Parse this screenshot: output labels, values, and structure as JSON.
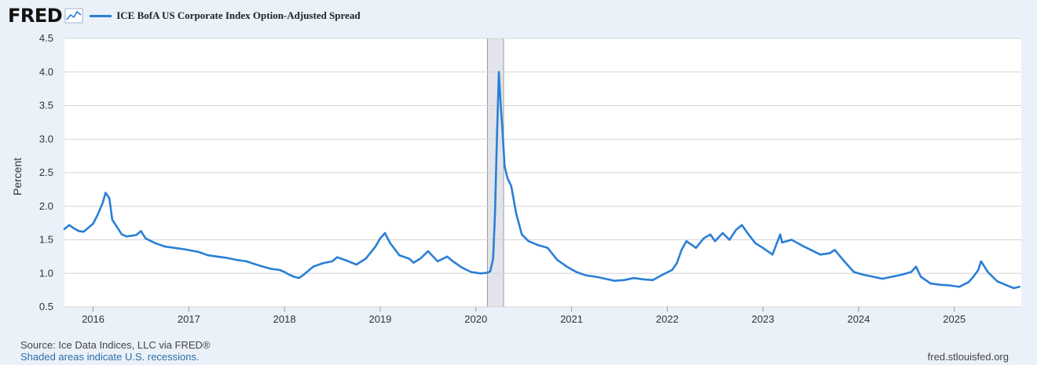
{
  "header": {
    "logo_text": "FRED",
    "logo_icon": "line-chart-icon"
  },
  "footer": {
    "source": "Source: Ice Data Indices, LLC via FRED®",
    "recession_note": "Shaded areas indicate U.S. recessions.",
    "site": "fred.stlouisfed.org"
  },
  "colors": {
    "series": "#2a7fd6",
    "background": "#eaf1f9",
    "plot_background": "#ffffff",
    "grid": "#d5d5d5",
    "recession_shade": "#e1e4e8"
  },
  "chart_data": {
    "type": "line",
    "title": "",
    "xlabel": "",
    "ylabel": "Percent",
    "ylim": [
      0.5,
      4.5
    ],
    "yticks": [
      0.5,
      1.0,
      1.5,
      2.0,
      2.5,
      3.0,
      3.5,
      4.0,
      4.5
    ],
    "ytick_labels": [
      "0.5",
      "1.0",
      "1.5",
      "2.0",
      "2.5",
      "3.0",
      "3.5",
      "4.0",
      "4.5"
    ],
    "xlim": [
      2015.7,
      2025.7
    ],
    "xticks": [
      2016,
      2017,
      2018,
      2019,
      2020,
      2021,
      2022,
      2023,
      2024,
      2025
    ],
    "xtick_labels": [
      "2016",
      "2017",
      "2018",
      "2019",
      "2020",
      "2021",
      "2022",
      "2023",
      "2024",
      "2025"
    ],
    "grid": true,
    "legend_position": "top-left",
    "recessions": [
      [
        2020.12,
        2020.29
      ]
    ],
    "series": [
      {
        "name": "ICE BofA US Corporate Index Option-Adjusted Spread",
        "x": [
          2015.7,
          2015.75,
          2015.8,
          2015.85,
          2015.9,
          2016.0,
          2016.05,
          2016.1,
          2016.13,
          2016.17,
          2016.2,
          2016.3,
          2016.35,
          2016.45,
          2016.5,
          2016.55,
          2016.65,
          2016.75,
          2016.85,
          2016.95,
          2017.1,
          2017.2,
          2017.3,
          2017.4,
          2017.5,
          2017.6,
          2017.75,
          2017.85,
          2017.95,
          2018.0,
          2018.05,
          2018.1,
          2018.15,
          2018.2,
          2018.3,
          2018.4,
          2018.5,
          2018.55,
          2018.65,
          2018.75,
          2018.85,
          2018.95,
          2019.0,
          2019.05,
          2019.1,
          2019.2,
          2019.3,
          2019.35,
          2019.42,
          2019.5,
          2019.6,
          2019.7,
          2019.75,
          2019.85,
          2019.95,
          2020.05,
          2020.12,
          2020.15,
          2020.18,
          2020.2,
          2020.22,
          2020.24,
          2020.26,
          2020.28,
          2020.3,
          2020.33,
          2020.37,
          2020.42,
          2020.48,
          2020.55,
          2020.65,
          2020.75,
          2020.85,
          2020.95,
          2021.05,
          2021.15,
          2021.25,
          2021.35,
          2021.45,
          2021.55,
          2021.65,
          2021.75,
          2021.85,
          2021.95,
          2022.05,
          2022.1,
          2022.15,
          2022.2,
          2022.3,
          2022.38,
          2022.45,
          2022.5,
          2022.58,
          2022.65,
          2022.72,
          2022.78,
          2022.85,
          2022.92,
          2023.0,
          2023.1,
          2023.18,
          2023.2,
          2023.3,
          2023.4,
          2023.5,
          2023.6,
          2023.7,
          2023.75,
          2023.85,
          2023.95,
          2024.05,
          2024.15,
          2024.25,
          2024.35,
          2024.45,
          2024.55,
          2024.6,
          2024.65,
          2024.75,
          2024.85,
          2024.95,
          2025.05,
          2025.15,
          2025.2,
          2025.25,
          2025.28,
          2025.35,
          2025.45,
          2025.55,
          2025.62,
          2025.68
        ],
        "y": [
          1.66,
          1.72,
          1.67,
          1.63,
          1.62,
          1.74,
          1.88,
          2.05,
          2.2,
          2.12,
          1.8,
          1.58,
          1.55,
          1.57,
          1.63,
          1.52,
          1.45,
          1.4,
          1.38,
          1.36,
          1.32,
          1.27,
          1.25,
          1.23,
          1.2,
          1.18,
          1.11,
          1.07,
          1.05,
          1.02,
          0.98,
          0.95,
          0.93,
          0.98,
          1.1,
          1.15,
          1.18,
          1.24,
          1.19,
          1.13,
          1.22,
          1.4,
          1.52,
          1.6,
          1.46,
          1.27,
          1.22,
          1.16,
          1.22,
          1.33,
          1.18,
          1.25,
          1.19,
          1.09,
          1.02,
          1.0,
          1.01,
          1.03,
          1.22,
          1.9,
          3.0,
          4.0,
          3.5,
          3.1,
          2.6,
          2.42,
          2.3,
          1.9,
          1.58,
          1.48,
          1.42,
          1.38,
          1.2,
          1.1,
          1.02,
          0.97,
          0.95,
          0.92,
          0.89,
          0.9,
          0.93,
          0.91,
          0.9,
          0.98,
          1.05,
          1.15,
          1.35,
          1.48,
          1.38,
          1.52,
          1.58,
          1.48,
          1.6,
          1.5,
          1.65,
          1.72,
          1.58,
          1.45,
          1.38,
          1.28,
          1.58,
          1.46,
          1.5,
          1.42,
          1.35,
          1.28,
          1.3,
          1.35,
          1.18,
          1.02,
          0.98,
          0.95,
          0.92,
          0.95,
          0.98,
          1.02,
          1.1,
          0.95,
          0.85,
          0.83,
          0.82,
          0.8,
          0.87,
          0.95,
          1.05,
          1.18,
          1.02,
          0.88,
          0.82,
          0.78,
          0.8
        ]
      }
    ]
  }
}
